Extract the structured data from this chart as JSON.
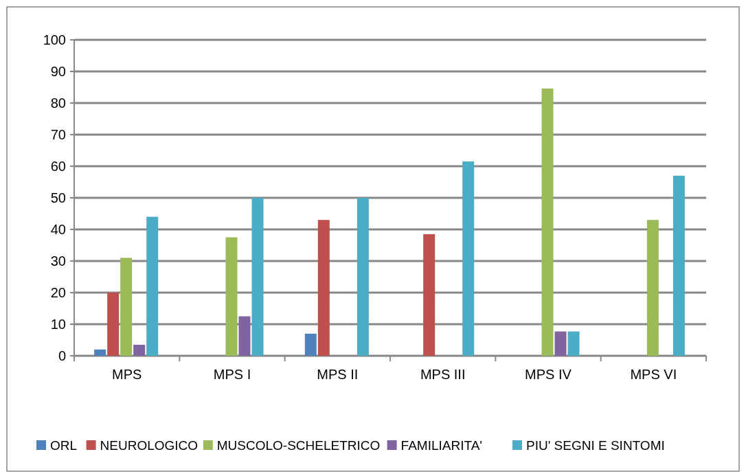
{
  "chart_data": {
    "type": "bar",
    "categories": [
      "MPS",
      "MPS I",
      "MPS II",
      "MPS III",
      "MPS IV",
      "MPS VI"
    ],
    "series": [
      {
        "name": "ORL",
        "color": "#4f81bd",
        "values": [
          2,
          0,
          7,
          0,
          0,
          0
        ]
      },
      {
        "name": "NEUROLOGICO",
        "color": "#c0504d",
        "values": [
          20,
          0,
          43,
          38.5,
          0,
          0
        ]
      },
      {
        "name": "MUSCOLO-SCHELETRICO",
        "color": "#9bbb59",
        "values": [
          31,
          37.5,
          0,
          0,
          84.6,
          43
        ]
      },
      {
        "name": "FAMILIARITA'",
        "color": "#8064a2",
        "values": [
          3.5,
          12.5,
          0,
          0,
          7.7,
          0
        ]
      },
      {
        "name": "PIU' SEGNI E SINTOMI",
        "color": "#4bacc6",
        "values": [
          44,
          50,
          50,
          61.5,
          7.7,
          57
        ]
      }
    ],
    "ylim": [
      0,
      100
    ],
    "yticks": [
      0,
      10,
      20,
      30,
      40,
      50,
      60,
      70,
      80,
      90,
      100
    ],
    "grid": "y",
    "legend": "bottom"
  }
}
